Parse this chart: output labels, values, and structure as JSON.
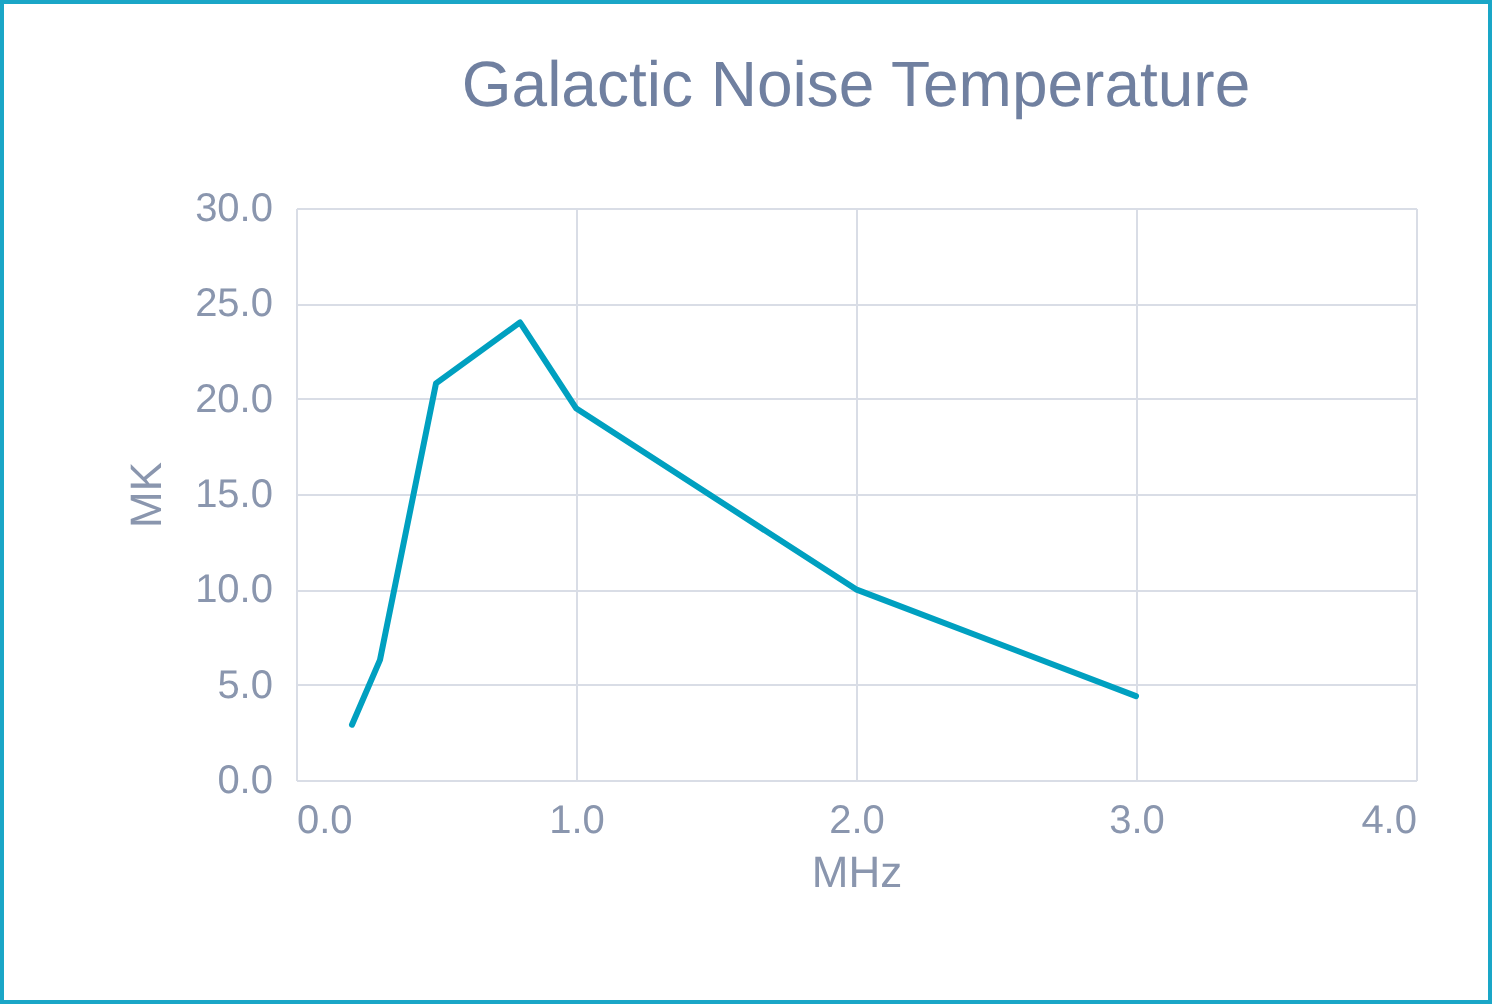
{
  "chart_data": {
    "type": "line",
    "title": "Galactic Noise Temperature",
    "xlabel": "MHz",
    "ylabel": "MK",
    "x": [
      0.2,
      0.3,
      0.5,
      0.8,
      1.0,
      2.0,
      3.0
    ],
    "series": [
      {
        "color": "#00a0c0",
        "values": [
          2.9,
          6.3,
          20.8,
          24.0,
          19.5,
          10.0,
          4.4
        ]
      }
    ],
    "xlim": [
      0,
      4
    ],
    "ylim": [
      0,
      30
    ],
    "xticks": [
      {
        "value": 0,
        "label": "0.0"
      },
      {
        "value": 1,
        "label": "1.0"
      },
      {
        "value": 2,
        "label": "2.0"
      },
      {
        "value": 3,
        "label": "3.0"
      },
      {
        "value": 4,
        "label": "4.0"
      }
    ],
    "yticks": [
      {
        "value": 0,
        "label": "0.0"
      },
      {
        "value": 5,
        "label": "5.0"
      },
      {
        "value": 10,
        "label": "10.0"
      },
      {
        "value": 15,
        "label": "15.0"
      },
      {
        "value": 20,
        "label": "20.0"
      },
      {
        "value": 25,
        "label": "25.0"
      },
      {
        "value": 30,
        "label": "30.0"
      }
    ],
    "grid": true,
    "marker": "none",
    "line_style": "solid"
  }
}
